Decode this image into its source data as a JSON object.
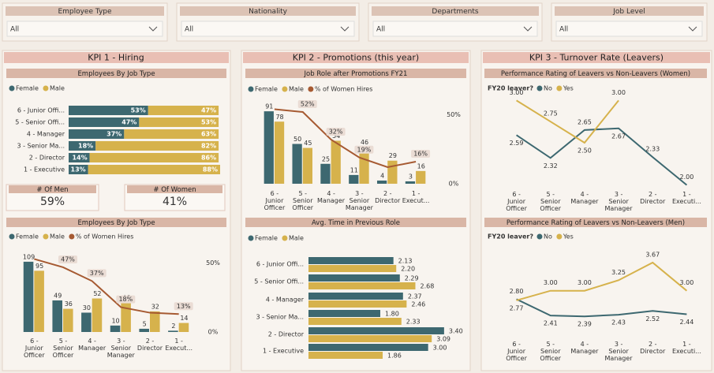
{
  "filters": [
    {
      "label": "Employee Type",
      "value": "All"
    },
    {
      "label": "Nationality",
      "value": "All"
    },
    {
      "label": "Departments",
      "value": "All"
    },
    {
      "label": "Job Level",
      "value": "All"
    }
  ],
  "panels": [
    "KPI 1 - Hiring",
    "KPI 2 - Promotions (this year)",
    "KPI 3 - Turnover Rate (Leavers)"
  ],
  "cards": [
    {
      "label": "# Of Men",
      "value": "59%"
    },
    {
      "label": "# Of Women",
      "value": "41%"
    }
  ],
  "chart_data": [
    {
      "type": "hbar100",
      "title": "Employees By Job Type",
      "categories": [
        "6 - Junior Offi...",
        "5 - Senior Offi...",
        "4 - Manager",
        "3 - Senior Ma...",
        "2 - Director",
        "1 - Executive"
      ],
      "series": [
        {
          "name": "Female",
          "color": "#3d6870",
          "values": [
            53,
            47,
            37,
            18,
            14,
            13
          ],
          "value_labels": [
            "53%",
            "47%",
            "37%",
            "18%",
            "14%",
            "13%"
          ]
        },
        {
          "name": "Male",
          "color": "#d6b24c",
          "values": [
            47,
            53,
            63,
            82,
            86,
            88
          ],
          "value_labels": [
            "47%",
            "53%",
            "63%",
            "82%",
            "86%",
            "88%"
          ]
        }
      ],
      "xlim": [
        0,
        101
      ]
    },
    {
      "type": "combo",
      "title": "Employees By Job Type",
      "categories": [
        "6 - Junior Officer",
        "5 - Senior Officer",
        "4 - Manager",
        "3 - Senior Manager",
        "2 - Director",
        "1 - Execut..."
      ],
      "series": [
        {
          "name": "Female",
          "color": "#3d6870",
          "values": [
            109,
            49,
            30,
            10,
            5,
            2
          ]
        },
        {
          "name": "Male",
          "color": "#d6b24c",
          "values": [
            95,
            36,
            52,
            46,
            32,
            14
          ]
        },
        {
          "name": "% of Women Hires",
          "type": "line",
          "axis": "y2",
          "color": "#a65a32",
          "values": [
            53,
            47,
            37,
            18,
            14,
            13
          ],
          "value_labels": [
            null,
            "47%",
            "37%",
            "18%",
            null,
            "13%"
          ]
        }
      ],
      "ylim": [
        0,
        126
      ],
      "y2lim": [
        0,
        59
      ],
      "y2ticks": [
        {
          "value": 50,
          "label": "50%"
        },
        {
          "value": 0,
          "label": "0%"
        }
      ]
    },
    {
      "type": "combo",
      "title": "Job Role after Promotions FY21",
      "categories": [
        "6 - Junior Officer",
        "5 - Senior Officer",
        "4 - Manager",
        "3 - Senior Manager",
        "2 - Director",
        "1 - Execut..."
      ],
      "series": [
        {
          "name": "Female",
          "color": "#3d6870",
          "values": [
            91,
            50,
            25,
            11,
            4,
            3
          ]
        },
        {
          "name": "Male",
          "color": "#d6b24c",
          "values": [
            78,
            45,
            54,
            46,
            29,
            16
          ]
        },
        {
          "name": "% of Women Hires",
          "type": "line",
          "axis": "y2",
          "color": "#a65a32",
          "values": [
            54,
            52,
            32,
            19,
            12,
            16
          ],
          "value_labels": [
            null,
            "52%",
            "32%",
            "19%",
            null,
            "16%"
          ]
        }
      ],
      "ylim": [
        0,
        104
      ],
      "y2lim": [
        0,
        60
      ],
      "y2ticks": [
        {
          "value": 50,
          "label": "50%"
        },
        {
          "value": 0,
          "label": "0%"
        }
      ]
    },
    {
      "type": "hgroup",
      "title": "Avg. Time in Previous Role",
      "categories": [
        "6 - Junior Offi...",
        "5 - Senior Offi...",
        "4 - Manager",
        "3 - Senior Ma...",
        "2 - Director",
        "1 - Executive"
      ],
      "series": [
        {
          "name": "Female",
          "color": "#3d6870",
          "values": [
            2.13,
            2.29,
            2.37,
            1.8,
            3.4,
            3.0
          ],
          "value_labels": [
            "2.13",
            "2.29",
            "2.37",
            "1.80",
            "3.40",
            "3.00"
          ]
        },
        {
          "name": "Male",
          "color": "#d6b24c",
          "values": [
            2.2,
            2.68,
            2.46,
            2.33,
            3.09,
            1.86
          ],
          "value_labels": [
            "2.20",
            "2.68",
            "2.46",
            "2.33",
            "3.09",
            "1.86"
          ]
        }
      ],
      "xlim": [
        0,
        3.6
      ]
    },
    {
      "type": "line",
      "title": "Performance Rating of Leavers vs Non-Leavers (Women)",
      "legend_title": "FY20 leaver?",
      "categories": [
        "6 - Junior Officer",
        "5 - Senior Officer",
        "4 - Manager",
        "3 - Senior Manager",
        "2 - Director",
        "1 - Executi..."
      ],
      "series": [
        {
          "name": "No",
          "color": "#3d6870",
          "values": [
            2.59,
            2.32,
            2.65,
            2.67,
            2.33,
            2.0
          ],
          "value_labels": [
            "2.59",
            "2.32",
            "2.65",
            "2.67",
            "2.33",
            "2.00"
          ]
        },
        {
          "name": "Yes",
          "color": "#d6b24c",
          "values": [
            3.0,
            2.75,
            2.5,
            3.0,
            null,
            null
          ],
          "value_labels": [
            "3.00",
            "2.75",
            "2.50",
            "3.00",
            null,
            null
          ]
        }
      ],
      "ylim": [
        1.95,
        3.05
      ]
    },
    {
      "type": "line",
      "title": "Performance Rating of Leavers vs Non-Leavers (Men)",
      "legend_title": "FY20 leaver?",
      "categories": [
        "6 - Junior Officer",
        "5 - Senior Officer",
        "4 - Manager",
        "3 - Senior Manager",
        "2 - Director",
        "1 - Executi..."
      ],
      "series": [
        {
          "name": "No",
          "color": "#3d6870",
          "values": [
            2.8,
            2.41,
            2.39,
            2.43,
            2.52,
            2.44
          ],
          "value_labels": [
            "2.80",
            "2.41",
            "2.39",
            "2.43",
            "2.52",
            "2.44"
          ]
        },
        {
          "name": "Yes",
          "color": "#d6b24c",
          "values": [
            2.77,
            3.0,
            3.0,
            3.25,
            3.67,
            3.0
          ],
          "value_labels": [
            "2.77",
            "3.00",
            "3.00",
            "3.25",
            "3.67",
            "3.00"
          ]
        }
      ],
      "ylim": [
        2.3,
        3.82
      ]
    }
  ]
}
